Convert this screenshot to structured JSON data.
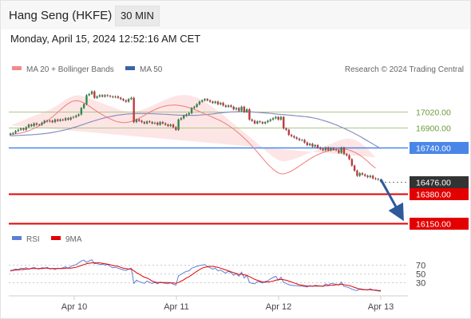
{
  "header": {
    "title": "Hang Seng (HKFE)",
    "timeframe": "30 MIN"
  },
  "datetime": "Monday, April 15, 2024 12:52:16 AM CET",
  "copyright": "Research © 2024 Trading Central",
  "colors": {
    "bollinger": "#f48a8a",
    "ma50": "#3b63a8",
    "support": "#e30000",
    "pivot": "#4a86e8",
    "resistance": "#a8c98a",
    "last": "#333333",
    "rsi": "#5b7fd6",
    "rsi_ma": "#e30000"
  },
  "chart_data": [
    {
      "type": "candlestick",
      "instrument": "Hang Seng (HKFE)",
      "timeframe": "30 MIN",
      "legend": [
        "MA 20 + Bollinger Bands",
        "MA 50"
      ],
      "ylim": [
        16080,
        17290
      ],
      "x_ticks": [
        "Apr 10",
        "Apr 11",
        "Apr 12",
        "Apr 13"
      ],
      "levels": [
        {
          "value": 17020.0,
          "label": "17020.00",
          "kind": "resistance",
          "boxed": false
        },
        {
          "value": 16900.0,
          "label": "16900.00",
          "kind": "resistance",
          "boxed": false
        },
        {
          "value": 16740.0,
          "label": "16740.00",
          "kind": "pivot",
          "boxed": true
        },
        {
          "value": 16476.0,
          "label": "16476.00",
          "kind": "last",
          "boxed": true
        },
        {
          "value": 16380.0,
          "label": "16380.00",
          "kind": "support",
          "boxed": true
        },
        {
          "value": 16150.0,
          "label": "16150.00",
          "kind": "support",
          "boxed": true
        }
      ],
      "close": [
        16850,
        16855,
        16870,
        16880,
        16890,
        16880,
        16900,
        16920,
        16910,
        16930,
        16920,
        16920,
        16935,
        16950,
        16945,
        16950,
        16940,
        16960,
        16950,
        16960,
        16955,
        16970,
        16960,
        16975,
        16980,
        16990,
        17000,
        17050,
        17080,
        17150,
        17160,
        17180,
        17130,
        17140,
        17150,
        17140,
        17150,
        17145,
        17140,
        17135,
        17140,
        17130,
        17120,
        17110,
        17100,
        17120,
        17130,
        16940,
        16960,
        16950,
        16940,
        16930,
        16945,
        16940,
        16930,
        16935,
        16920,
        16940,
        16930,
        16920,
        16910,
        16920,
        16900,
        16880,
        16960,
        16970,
        16990,
        17000,
        17010,
        17050,
        17060,
        17080,
        17100,
        17110,
        17120,
        17110,
        17100,
        17090,
        17100,
        17080,
        17090,
        17070,
        17060,
        17070,
        17060,
        17040,
        17050,
        17030,
        17060,
        17020,
        17040,
        16960,
        16950,
        16930,
        16945,
        16940,
        16930,
        16940,
        16950,
        16960,
        16970,
        16980,
        16960,
        16980,
        16890,
        16880,
        16840,
        16830,
        16820,
        16810,
        16800,
        16800,
        16780,
        16760,
        16770,
        16750,
        16760,
        16740,
        16730,
        16720,
        16740,
        16720,
        16735,
        16725,
        16720,
        16700,
        16740,
        16690,
        16680,
        16650,
        16600,
        16560,
        16520,
        16540,
        16530,
        16520,
        16510,
        16520,
        16500,
        16495,
        16490,
        16476
      ],
      "ma50": [
        16833,
        16834,
        16835,
        16836,
        16837,
        16838,
        16839,
        16840,
        16841,
        16843,
        16844,
        16846,
        16848,
        16850,
        16853,
        16856,
        16859,
        16863,
        16867,
        16871,
        16875,
        16880,
        16885,
        16891,
        16897,
        16903,
        16910,
        16917,
        16924,
        16931,
        16938,
        16945,
        16951,
        16957,
        16963,
        16969,
        16974,
        16979,
        16983,
        16987,
        16991,
        16995,
        16997,
        17000,
        17002,
        17004,
        17005,
        17006,
        17007,
        17007,
        17007,
        17007,
        17007,
        17006,
        17006,
        17005,
        17004,
        17003,
        17002,
        17001,
        17000,
        16999,
        16997,
        16996,
        16995,
        16994,
        16993,
        16993,
        16993,
        16993,
        16993,
        16994,
        16995,
        16997,
        16998,
        17000,
        17002,
        17004,
        17007,
        17010,
        17012,
        17014,
        17016,
        17018,
        17019,
        17020,
        17021,
        17022,
        17022,
        17022,
        17021,
        17020,
        17019,
        17018,
        17017,
        17015,
        17013,
        17012,
        17010,
        17008,
        17006,
        17004,
        17002,
        17000,
        16999,
        16997,
        16995,
        16993,
        16991,
        16989,
        16987,
        16985,
        16983,
        16981,
        16978,
        16974,
        16970,
        16965,
        16960,
        16954,
        16948,
        16941,
        16934,
        16926,
        16918,
        16910,
        16901,
        16892,
        16882,
        16872,
        16862,
        16851,
        16840,
        16829,
        16817,
        16805,
        16793,
        16781,
        16769,
        16757,
        16745,
        16733
      ],
      "ma20": [
        16845,
        16846,
        16848,
        16851,
        16855,
        16860,
        16866,
        16873,
        16881,
        16890,
        16900,
        16911,
        16923,
        16936,
        16950,
        16965,
        16981,
        16998,
        17016,
        17035,
        17053,
        17070,
        17085,
        17097,
        17105,
        17108,
        17106,
        17100,
        17090,
        17078,
        17065,
        17051,
        17037,
        17023,
        17010,
        16998,
        16986,
        16975,
        16965,
        16956,
        16948,
        16942,
        16938,
        16936,
        16937,
        16940,
        16945,
        16952,
        16960,
        16970,
        16981,
        16993,
        17005,
        17017,
        17028,
        17038,
        17047,
        17055,
        17061,
        17066,
        17070,
        17072,
        17073,
        17073,
        17071,
        17068,
        17064,
        17059,
        17053,
        17046,
        17039,
        17031,
        17023,
        17014,
        17005,
        16996,
        16987,
        16978,
        16969,
        16960,
        16950,
        16939,
        16927,
        16914,
        16900,
        16885,
        16869,
        16852,
        16834,
        16815,
        16795,
        16774,
        16752,
        16729,
        16706,
        16682,
        16658,
        16634,
        16611,
        16590,
        16571,
        16555,
        16543,
        16536,
        16535,
        16540,
        16548,
        16558,
        16570,
        16583,
        16597,
        16611,
        16625,
        16639,
        16652,
        16664,
        16675,
        16685,
        16694,
        16702,
        16709,
        16715,
        16720,
        16724,
        16727,
        16729,
        16730,
        16729,
        16726,
        16721,
        16714,
        16705,
        16694,
        16681,
        16666,
        16650,
        16633,
        16615,
        16597,
        16580
      ]
    },
    {
      "type": "line",
      "legend": [
        "RSI",
        "9MA"
      ],
      "ylim": [
        0,
        100
      ],
      "y_ticks": [
        70,
        50,
        30
      ],
      "rsi": [
        55,
        58,
        60,
        59,
        62,
        61,
        63,
        60,
        62,
        64,
        61,
        60,
        63,
        62,
        64,
        60,
        61,
        59,
        62,
        61,
        63,
        65,
        62,
        66,
        68,
        70,
        74,
        78,
        80,
        75,
        78,
        81,
        72,
        73,
        70,
        71,
        69,
        70,
        66,
        63,
        64,
        62,
        60,
        58,
        57,
        60,
        62,
        28,
        35,
        32,
        30,
        28,
        33,
        30,
        28,
        30,
        27,
        31,
        29,
        28,
        27,
        30,
        26,
        24,
        45,
        48,
        52,
        55,
        56,
        62,
        64,
        66,
        68,
        69,
        70,
        66,
        63,
        60,
        62,
        56,
        58,
        54,
        51,
        55,
        52,
        46,
        50,
        44,
        53,
        40,
        46,
        30,
        28,
        27,
        32,
        31,
        29,
        32,
        34,
        38,
        41,
        44,
        35,
        42,
        30,
        28,
        25,
        24,
        23,
        23,
        22,
        22,
        21,
        20,
        23,
        21,
        24,
        23,
        22,
        21,
        27,
        24,
        28,
        27,
        26,
        24,
        31,
        21,
        20,
        18,
        15,
        13,
        12,
        16,
        15,
        14,
        13,
        16,
        13,
        12,
        11,
        10
      ],
      "rsi_ma": [
        57,
        57,
        58,
        58,
        59,
        59,
        60,
        60,
        61,
        61,
        61,
        61,
        61,
        62,
        62,
        61,
        61,
        61,
        61,
        61,
        61,
        62,
        62,
        62,
        63,
        64,
        66,
        68,
        70,
        72,
        73,
        74,
        74,
        74,
        74,
        73,
        72,
        71,
        70,
        68,
        67,
        66,
        64,
        62,
        61,
        60,
        60,
        56,
        52,
        49,
        45,
        42,
        40,
        37,
        33,
        31,
        30,
        30,
        30,
        30,
        30,
        29,
        29,
        28,
        30,
        33,
        36,
        40,
        43,
        47,
        51,
        55,
        59,
        62,
        64,
        65,
        66,
        66,
        65,
        64,
        62,
        60,
        58,
        56,
        54,
        52,
        50,
        48,
        49,
        47,
        46,
        43,
        40,
        37,
        35,
        33,
        31,
        31,
        31,
        32,
        33,
        35,
        36,
        37,
        36,
        35,
        33,
        31,
        29,
        27,
        25,
        24,
        23,
        22,
        22,
        22,
        22,
        22,
        22,
        22,
        23,
        23,
        24,
        24,
        25,
        25,
        26,
        25,
        24,
        23,
        21,
        19,
        17,
        15,
        14,
        14,
        14,
        14,
        13,
        13,
        12,
        12
      ]
    }
  ]
}
